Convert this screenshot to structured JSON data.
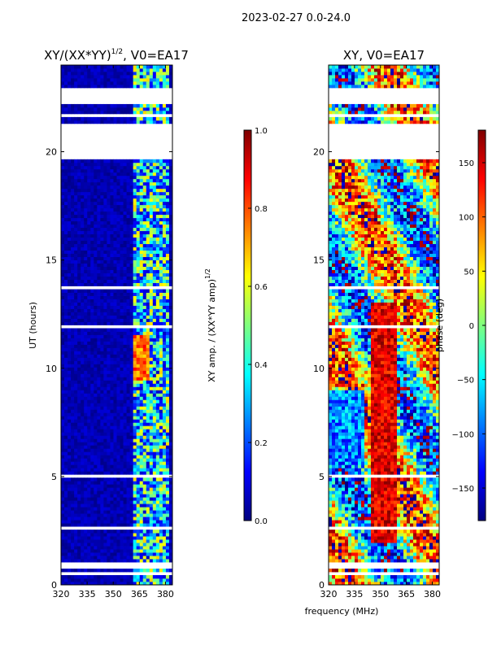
{
  "figure_title": "2023-02-27 0.0-24.0",
  "palette": {
    "jet": [
      "#00007f",
      "#0000ff",
      "#007fff",
      "#00ffff",
      "#7fff7f",
      "#ffff00",
      "#ff7f00",
      "#ff0000",
      "#7f0000"
    ],
    "background": "#ffffff",
    "axis": "#000000"
  },
  "chart_data": [
    {
      "type": "heatmap",
      "title_main": "XY/(XX*YY)",
      "title_sup": "1/2",
      "title_rest": ", V0=EA17",
      "xlabel": "",
      "ylabel": "UT (hours)",
      "xlim": [
        320,
        384
      ],
      "ylim": [
        0,
        24
      ],
      "xticks": [
        320,
        335,
        350,
        365,
        380
      ],
      "yticks": [
        0,
        5,
        10,
        15,
        20
      ],
      "quantity": "normalized XY amplitude",
      "typical_level": 0.05,
      "bright_band_mhz": [
        361,
        383
      ],
      "bright_level": 0.45,
      "peak_region": {
        "mhz": [
          361,
          371
        ],
        "hours": [
          9.5,
          11.5
        ],
        "level": 0.8
      },
      "blank_rows_hours": [
        [
          0.45,
          0.55
        ],
        [
          0.8,
          1.0
        ],
        [
          2.6,
          2.75
        ],
        [
          4.95,
          5.1
        ],
        [
          11.8,
          11.95
        ],
        [
          13.7,
          13.85
        ],
        [
          19.6,
          21.35
        ],
        [
          21.6,
          21.75
        ],
        [
          22.2,
          22.9
        ]
      ]
    },
    {
      "type": "heatmap",
      "title": "XY, V0=EA17",
      "xlabel": "",
      "ylabel": "",
      "xlim": [
        320,
        384
      ],
      "ylim": [
        0,
        24
      ],
      "xticks": [
        320,
        335,
        350,
        365,
        380
      ],
      "yticks": [
        0,
        5,
        10,
        15,
        20
      ],
      "quantity": "XY phase (degrees)",
      "phase_range": [
        -180,
        180
      ],
      "blank_rows_hours": [
        [
          0.45,
          0.55
        ],
        [
          0.8,
          1.0
        ],
        [
          2.6,
          2.75
        ],
        [
          4.95,
          5.1
        ],
        [
          11.8,
          11.95
        ],
        [
          13.7,
          13.85
        ],
        [
          19.6,
          21.35
        ],
        [
          21.6,
          21.75
        ],
        [
          22.2,
          22.9
        ]
      ]
    }
  ],
  "shared_xlabel": "frequency (MHz)",
  "colorbar_amp": {
    "label_main": "XY amp. / (XX*YY amp)",
    "label_sup": "1/2",
    "range": [
      0.0,
      1.0
    ],
    "ticks": [
      "0.0",
      "0.2",
      "0.4",
      "0.6",
      "0.8",
      "1.0"
    ]
  },
  "colorbar_phase": {
    "label": "phase (deg)",
    "range": [
      -180,
      180
    ],
    "ticks": [
      "−150",
      "−100",
      "−50",
      "0",
      "50",
      "100",
      "150"
    ]
  }
}
